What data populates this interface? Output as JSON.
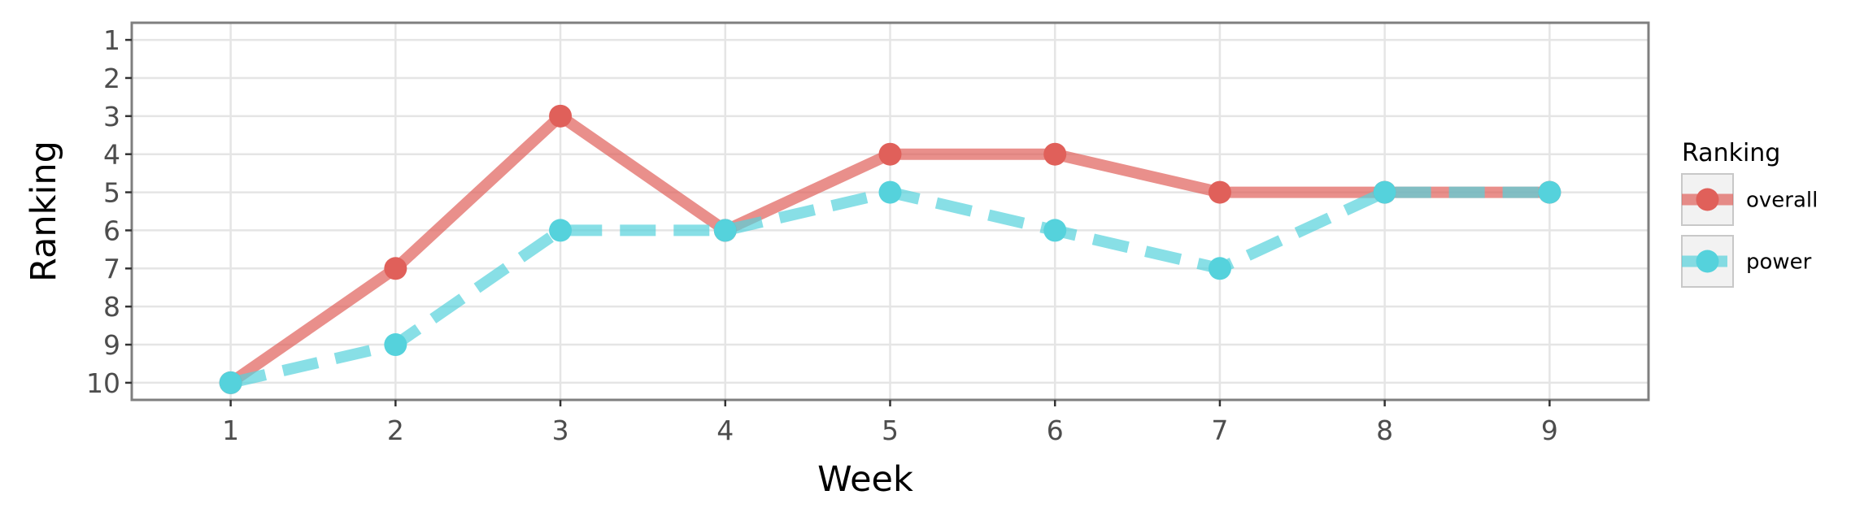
{
  "chart_data": {
    "type": "line",
    "xlabel": "Week",
    "ylabel": "Ranking",
    "x": [
      1,
      2,
      3,
      4,
      5,
      6,
      7,
      8,
      9
    ],
    "xlim": [
      0.4,
      9.6
    ],
    "ylim": [
      10.45,
      0.55
    ],
    "y_reversed": true,
    "x_ticks": [
      "1",
      "2",
      "3",
      "4",
      "5",
      "6",
      "7",
      "8",
      "9"
    ],
    "y_ticks": [
      "1",
      "2",
      "3",
      "4",
      "5",
      "6",
      "7",
      "8",
      "9",
      "10"
    ],
    "grid": true,
    "legend": {
      "title": "Ranking",
      "position": "right"
    },
    "series": [
      {
        "name": "overall",
        "color": "#e0605a",
        "dash": "solid",
        "values": [
          10,
          7,
          3,
          6,
          4,
          4,
          5,
          5,
          5
        ]
      },
      {
        "name": "power",
        "color": "#55d2dc",
        "dash": "dashed",
        "values": [
          10,
          9,
          6,
          6,
          5,
          6,
          7,
          5,
          5
        ]
      }
    ]
  }
}
